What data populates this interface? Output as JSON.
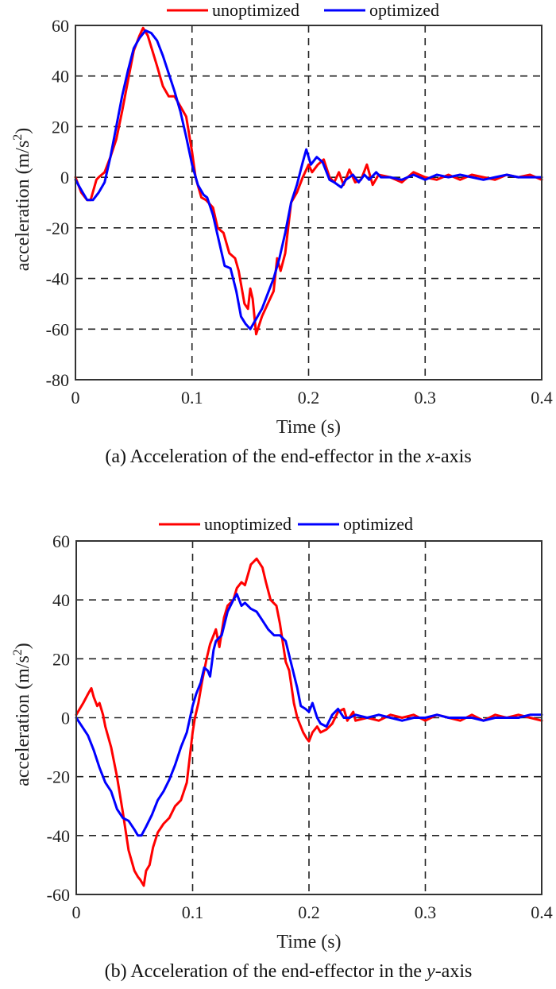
{
  "chart_data": [
    {
      "type": "line",
      "id": "a",
      "title": "",
      "caption_prefix": "(a) Acceleration of the end-effector in the ",
      "caption_axis": "x",
      "caption_suffix": "-axis",
      "xlabel": "Time (s)",
      "ylabel": "acceleration (m/s",
      "ylabel_sup": "2",
      "ylabel_close": ")",
      "xlim": [
        0,
        0.4
      ],
      "ylim": [
        -80,
        60
      ],
      "xticks": [
        0,
        0.1,
        0.2,
        0.3,
        0.4
      ],
      "xtick_labels": [
        "0",
        "0.1",
        "0.2",
        "0.3",
        "0.4"
      ],
      "yticks": [
        60,
        40,
        20,
        0,
        -20,
        -40,
        -60,
        -80
      ],
      "ytick_labels": [
        "60",
        "40",
        "20",
        "0",
        "-20",
        "-40",
        "-60",
        "-80"
      ],
      "grid": true,
      "legend_position": "top-center (outside)",
      "series": [
        {
          "name": "unoptimized",
          "color": "#ff0000",
          "x": [
            0,
            0.005,
            0.01,
            0.013,
            0.018,
            0.02,
            0.025,
            0.03,
            0.035,
            0.04,
            0.045,
            0.05,
            0.055,
            0.058,
            0.062,
            0.066,
            0.07,
            0.075,
            0.08,
            0.085,
            0.09,
            0.095,
            0.1,
            0.103,
            0.108,
            0.112,
            0.118,
            0.122,
            0.127,
            0.132,
            0.137,
            0.14,
            0.145,
            0.148,
            0.15,
            0.152,
            0.155,
            0.16,
            0.165,
            0.17,
            0.173,
            0.176,
            0.18,
            0.185,
            0.19,
            0.195,
            0.2,
            0.203,
            0.208,
            0.213,
            0.218,
            0.222,
            0.226,
            0.23,
            0.235,
            0.24,
            0.245,
            0.25,
            0.255,
            0.26,
            0.27,
            0.28,
            0.29,
            0.3,
            0.31,
            0.32,
            0.33,
            0.34,
            0.35,
            0.36,
            0.37,
            0.38,
            0.39,
            0.4
          ],
          "y": [
            0,
            -6,
            -9,
            -9,
            -1,
            0,
            2,
            8,
            15,
            26,
            38,
            50,
            56,
            59,
            56,
            50,
            44,
            36,
            32,
            32,
            28,
            24,
            10,
            0,
            -8,
            -9,
            -12,
            -20,
            -22,
            -30,
            -32,
            -37,
            -50,
            -52,
            -44,
            -48,
            -62,
            -55,
            -50,
            -45,
            -32,
            -37,
            -30,
            -10,
            -6,
            0,
            5,
            2,
            5,
            7,
            0,
            -2,
            2,
            -3,
            3,
            -2,
            -1,
            5,
            -3,
            1,
            0,
            -2,
            2,
            0,
            -1,
            1,
            -1,
            1,
            0,
            -1,
            1,
            0,
            1,
            -1
          ]
        },
        {
          "name": "optimized",
          "color": "#0000ff",
          "x": [
            0,
            0.005,
            0.01,
            0.015,
            0.02,
            0.025,
            0.03,
            0.035,
            0.04,
            0.045,
            0.05,
            0.055,
            0.06,
            0.065,
            0.07,
            0.075,
            0.08,
            0.085,
            0.09,
            0.095,
            0.1,
            0.105,
            0.11,
            0.113,
            0.118,
            0.123,
            0.128,
            0.133,
            0.138,
            0.142,
            0.146,
            0.15,
            0.155,
            0.16,
            0.165,
            0.17,
            0.175,
            0.18,
            0.185,
            0.19,
            0.195,
            0.198,
            0.202,
            0.207,
            0.212,
            0.218,
            0.222,
            0.228,
            0.232,
            0.238,
            0.243,
            0.248,
            0.252,
            0.258,
            0.262,
            0.27,
            0.28,
            0.29,
            0.3,
            0.31,
            0.32,
            0.33,
            0.34,
            0.35,
            0.36,
            0.37,
            0.38,
            0.39,
            0.4
          ],
          "y": [
            -1,
            -5,
            -9,
            -9,
            -6,
            -2,
            8,
            20,
            32,
            42,
            51,
            55,
            58,
            57,
            54,
            48,
            41,
            34,
            26,
            16,
            5,
            -3,
            -7,
            -8,
            -15,
            -25,
            -35,
            -36,
            -45,
            -55,
            -58,
            -60,
            -56,
            -52,
            -46,
            -40,
            -32,
            -22,
            -10,
            -3,
            6,
            11,
            5,
            8,
            6,
            -1,
            -2,
            -4,
            -1,
            1,
            -2,
            1,
            -1,
            2,
            0,
            0,
            -1,
            1,
            -1,
            1,
            0,
            1,
            0,
            -1,
            0,
            1,
            0,
            0,
            0
          ]
        }
      ]
    },
    {
      "type": "line",
      "id": "b",
      "title": "",
      "caption_prefix": "(b) Acceleration of the end-effector in the ",
      "caption_axis": "y",
      "caption_suffix": "-axis",
      "xlabel": "Time (s)",
      "ylabel": "acceleration (m/s",
      "ylabel_sup": "2",
      "ylabel_close": ")",
      "xlim": [
        0,
        0.4
      ],
      "ylim": [
        -60,
        60
      ],
      "xticks": [
        0,
        0.1,
        0.2,
        0.3,
        0.4
      ],
      "xtick_labels": [
        "0",
        "0.1",
        "0.2",
        "0.3",
        "0.4"
      ],
      "yticks": [
        60,
        40,
        20,
        0,
        -20,
        -40,
        -60
      ],
      "ytick_labels": [
        "60",
        "40",
        "20",
        "0",
        "-20",
        "-40",
        "-60"
      ],
      "grid": true,
      "legend_position": "top-center (outside)",
      "series": [
        {
          "name": "unoptimized",
          "color": "#ff0000",
          "x": [
            0,
            0.003,
            0.006,
            0.01,
            0.013,
            0.015,
            0.018,
            0.02,
            0.023,
            0.025,
            0.03,
            0.035,
            0.04,
            0.045,
            0.05,
            0.053,
            0.055,
            0.058,
            0.06,
            0.063,
            0.066,
            0.07,
            0.075,
            0.08,
            0.085,
            0.09,
            0.095,
            0.1,
            0.102,
            0.105,
            0.108,
            0.112,
            0.115,
            0.118,
            0.12,
            0.123,
            0.127,
            0.13,
            0.135,
            0.138,
            0.142,
            0.145,
            0.15,
            0.155,
            0.16,
            0.163,
            0.167,
            0.172,
            0.175,
            0.18,
            0.183,
            0.187,
            0.19,
            0.195,
            0.198,
            0.2,
            0.203,
            0.207,
            0.21,
            0.215,
            0.22,
            0.225,
            0.23,
            0.233,
            0.238,
            0.24,
            0.25,
            0.26,
            0.27,
            0.28,
            0.29,
            0.3,
            0.31,
            0.32,
            0.33,
            0.34,
            0.35,
            0.36,
            0.37,
            0.38,
            0.39,
            0.4
          ],
          "y": [
            1,
            3,
            5,
            8,
            10,
            7,
            4,
            5,
            1,
            -3,
            -10,
            -20,
            -32,
            -45,
            -52,
            -54,
            -55,
            -57,
            -52,
            -50,
            -44,
            -39,
            -36,
            -34,
            -30,
            -28,
            -22,
            -5,
            0,
            5,
            12,
            20,
            25,
            28,
            30,
            24,
            34,
            38,
            40,
            44,
            46,
            45,
            52,
            54,
            51,
            46,
            40,
            38,
            32,
            19,
            16,
            5,
            0,
            -5,
            -7,
            -8,
            -5,
            -3,
            -5,
            -4,
            -2,
            2,
            3,
            -1,
            2,
            -1,
            0,
            -1,
            1,
            0,
            1,
            -1,
            1,
            0,
            -1,
            1,
            -1,
            1,
            0,
            1,
            0,
            -1
          ]
        },
        {
          "name": "optimized",
          "color": "#0000ff",
          "x": [
            0,
            0.005,
            0.01,
            0.015,
            0.02,
            0.025,
            0.03,
            0.035,
            0.04,
            0.045,
            0.05,
            0.053,
            0.056,
            0.06,
            0.065,
            0.07,
            0.075,
            0.08,
            0.085,
            0.09,
            0.095,
            0.1,
            0.103,
            0.107,
            0.11,
            0.113,
            0.115,
            0.118,
            0.12,
            0.125,
            0.13,
            0.135,
            0.138,
            0.142,
            0.145,
            0.15,
            0.155,
            0.16,
            0.165,
            0.17,
            0.175,
            0.18,
            0.185,
            0.19,
            0.193,
            0.197,
            0.2,
            0.203,
            0.207,
            0.21,
            0.215,
            0.22,
            0.225,
            0.23,
            0.235,
            0.24,
            0.25,
            0.26,
            0.27,
            0.28,
            0.29,
            0.3,
            0.31,
            0.32,
            0.33,
            0.34,
            0.35,
            0.36,
            0.37,
            0.38,
            0.39,
            0.4
          ],
          "y": [
            0,
            -3,
            -6,
            -11,
            -17,
            -22,
            -25,
            -31,
            -34,
            -35,
            -38,
            -40,
            -40,
            -37,
            -33,
            -28,
            -25,
            -21,
            -16,
            -10,
            -5,
            4,
            8,
            12,
            17,
            16,
            14,
            23,
            26,
            28,
            36,
            40,
            42,
            38,
            39,
            37,
            36,
            33,
            30,
            28,
            28,
            26,
            18,
            10,
            4,
            3,
            2,
            5,
            0,
            -2,
            -3,
            1,
            3,
            0,
            0,
            1,
            0,
            1,
            0,
            -1,
            0,
            0,
            1,
            0,
            0,
            0,
            -1,
            0,
            0,
            0,
            1,
            1
          ]
        }
      ]
    }
  ]
}
